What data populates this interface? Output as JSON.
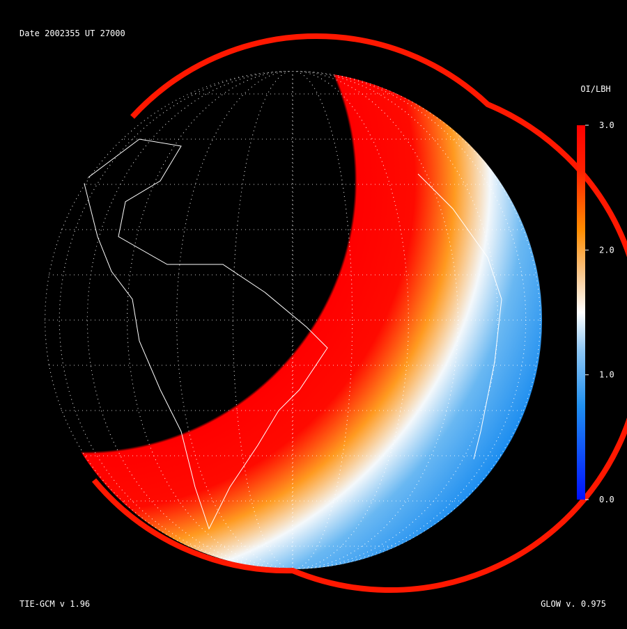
{
  "header": {
    "title": "Date 2002355  UT 27000"
  },
  "colorbar": {
    "title": "OI/LBH",
    "range": [
      0,
      3
    ],
    "ticks": [
      {
        "value": 0,
        "label": "0.0"
      },
      {
        "value": 1,
        "label": "1.0"
      },
      {
        "value": 2,
        "label": "2.0"
      },
      {
        "value": 3,
        "label": "3.0"
      }
    ]
  },
  "footer": {
    "left": "TIE-GCM v 1.96",
    "right": "GLOW v. 0.975"
  }
}
